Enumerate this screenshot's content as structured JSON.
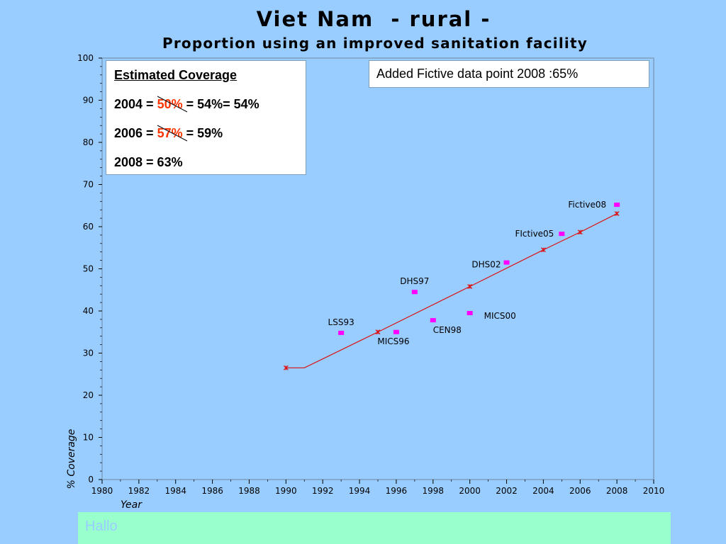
{
  "title": "Viet Nam  - rural -",
  "subtitle": "Proportion using an improved sanitation facility",
  "coverage": {
    "heading": "Estimated Coverage",
    "line1": {
      "prefix": "2004 = ",
      "struck": "50%",
      "suffix": " = 54%= 54%"
    },
    "line2": {
      "prefix": "2006 = ",
      "struck": "57%",
      "suffix": " = 59%"
    },
    "line3": "2008 = 63%"
  },
  "note": "Added Fictive data point 2008 :65%",
  "footer": "Hallo",
  "chart_data": {
    "type": "scatter",
    "title": "",
    "xlabel": "Year",
    "ylabel": "% Coverage",
    "xlim": [
      1980,
      2010
    ],
    "ylim": [
      0,
      100
    ],
    "x_ticks": [
      1980,
      1982,
      1984,
      1986,
      1988,
      1990,
      1992,
      1994,
      1996,
      1998,
      2000,
      2002,
      2004,
      2006,
      2008,
      2010
    ],
    "y_ticks": [
      0,
      10,
      20,
      30,
      40,
      50,
      60,
      70,
      80,
      90,
      100
    ],
    "grid": false,
    "series": [
      {
        "points": [
          {
            "x": 1993,
            "y": 34.8,
            "label": "LSS93"
          },
          {
            "x": 1996,
            "y": 35.0,
            "label": "MICS96"
          },
          {
            "x": 1997,
            "y": 44.5,
            "label": "DHS97"
          },
          {
            "x": 1998,
            "y": 37.8,
            "label": "CEN98"
          },
          {
            "x": 2000,
            "y": 39.5,
            "label": "MICS00"
          },
          {
            "x": 2002,
            "y": 51.5,
            "label": "DHS02"
          },
          {
            "x": 2005,
            "y": 58.3,
            "label": "FIctive05"
          },
          {
            "x": 2008,
            "y": 65.2,
            "label": "Fictive08"
          }
        ]
      },
      {
        "points": [
          {
            "x": 1990,
            "y": 26.5
          },
          {
            "x": 1991,
            "y": 26.5
          },
          {
            "x": 1995,
            "y": 35.0
          },
          {
            "x": 2000,
            "y": 45.8
          },
          {
            "x": 2004,
            "y": 54.5
          },
          {
            "x": 2006,
            "y": 58.7
          },
          {
            "x": 2008,
            "y": 63.1
          }
        ]
      }
    ],
    "colors": {
      "survey": "#ff00ff",
      "trend": "#dd1111",
      "plot_border": "#7f9fbf"
    }
  }
}
